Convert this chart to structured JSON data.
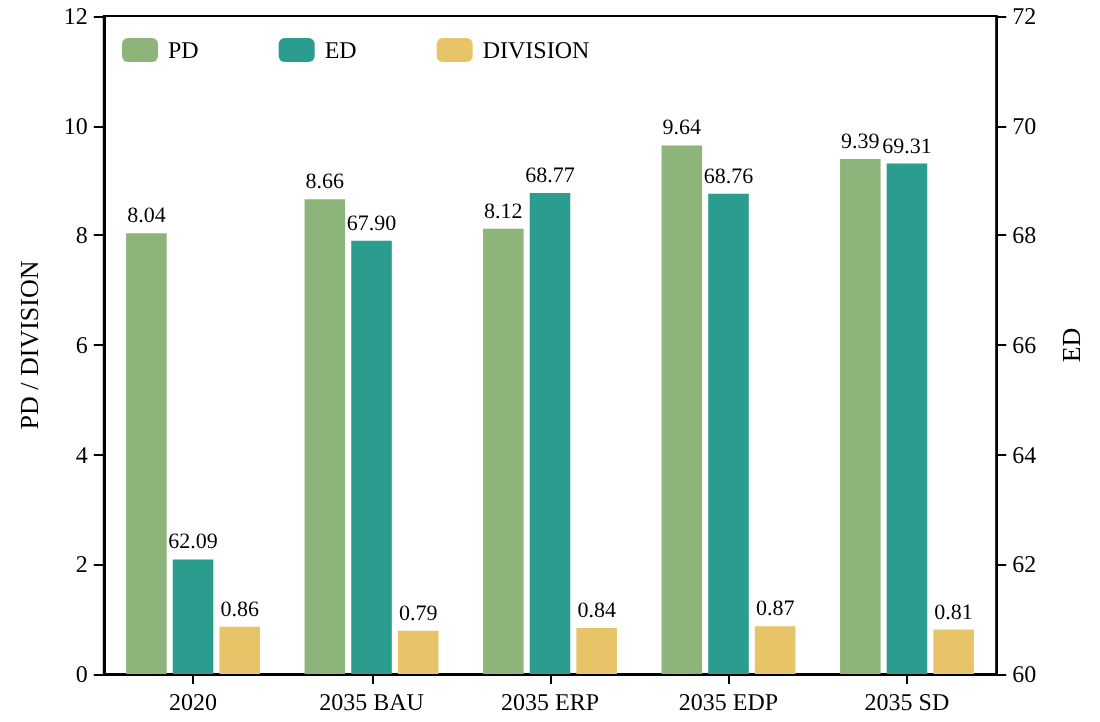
{
  "chart_data": {
    "type": "bar",
    "ylabel": "PD / DIVISION",
    "y2label": "ED",
    "categories": [
      "2020",
      "2035 BAU",
      "2035 ERP",
      "2035 EDP",
      "2035 SD"
    ],
    "series": [
      {
        "name": "PD",
        "color": "#8db57a",
        "values": [
          8.04,
          8.66,
          8.12,
          9.64,
          9.39
        ],
        "value_labels": [
          "8.04",
          "8.66",
          "8.12",
          "9.64",
          "9.39"
        ]
      },
      {
        "name": "ED",
        "color": "#2a9d8f",
        "axis": "y2",
        "values": [
          62.09,
          67.9,
          68.77,
          68.76,
          69.31
        ],
        "value_labels": [
          "62.09",
          "67.90",
          "68.77",
          "68.76",
          "69.31"
        ]
      },
      {
        "name": "DIVISION",
        "color": "#e8c468",
        "values": [
          0.86,
          0.79,
          0.84,
          0.87,
          0.81
        ],
        "value_labels": [
          "0.86",
          "0.79",
          "0.84",
          "0.87",
          "0.81"
        ]
      }
    ],
    "ylim": [
      0,
      12
    ],
    "yticks": [
      0,
      2,
      4,
      6,
      8,
      10,
      12
    ],
    "y2lim": [
      60,
      72
    ],
    "y2ticks": [
      60,
      62,
      64,
      66,
      68,
      70,
      72
    ],
    "legend": "top left",
    "grid": false
  }
}
